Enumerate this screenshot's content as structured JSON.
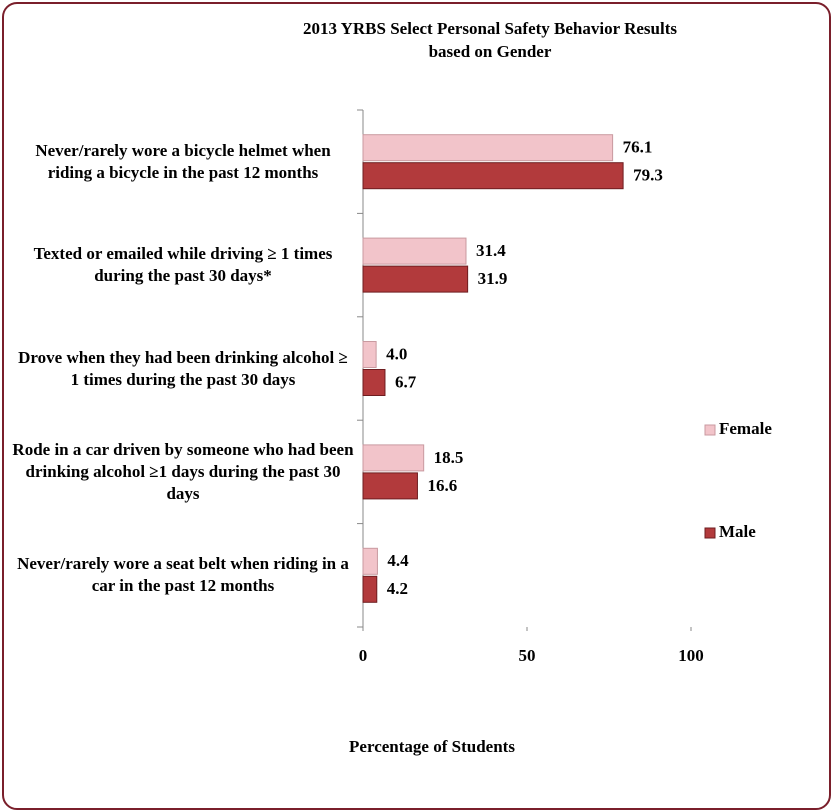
{
  "chart_data": {
    "type": "hbar",
    "title": "2013 YRBS Select Personal Safety  Behavior Results",
    "subtitle": "based on Gender",
    "xlabel": "Percentage of Students",
    "categories": [
      "Never/rarely wore a bicycle helmet when riding a bicycle in the past 12 months",
      "Texted or emailed while driving ≥ 1 times during the past 30 days*",
      "Drove when they had been drinking alcohol ≥ 1 times during the past 30 days",
      "Rode in a car driven by someone who had been drinking alcohol ≥1 days during the past 30 days",
      "Never/rarely wore a seat belt when riding in a car in the past 12 months"
    ],
    "series": [
      {
        "name": "Female",
        "color": "#f2c4ca",
        "values": [
          76.1,
          31.4,
          4.0,
          18.5,
          4.4
        ],
        "value_labels": [
          "76.1",
          "31.4",
          "4.0",
          "18.5",
          "4.4"
        ]
      },
      {
        "name": "Male",
        "color": "#b23a3c",
        "values": [
          79.3,
          31.9,
          6.7,
          16.6,
          4.2
        ],
        "value_labels": [
          "79.3",
          "31.9",
          "6.7",
          "16.6",
          "4.2"
        ]
      }
    ],
    "xlim": [
      0,
      100
    ],
    "xticks": [
      0,
      50,
      100
    ],
    "legend": "right"
  }
}
